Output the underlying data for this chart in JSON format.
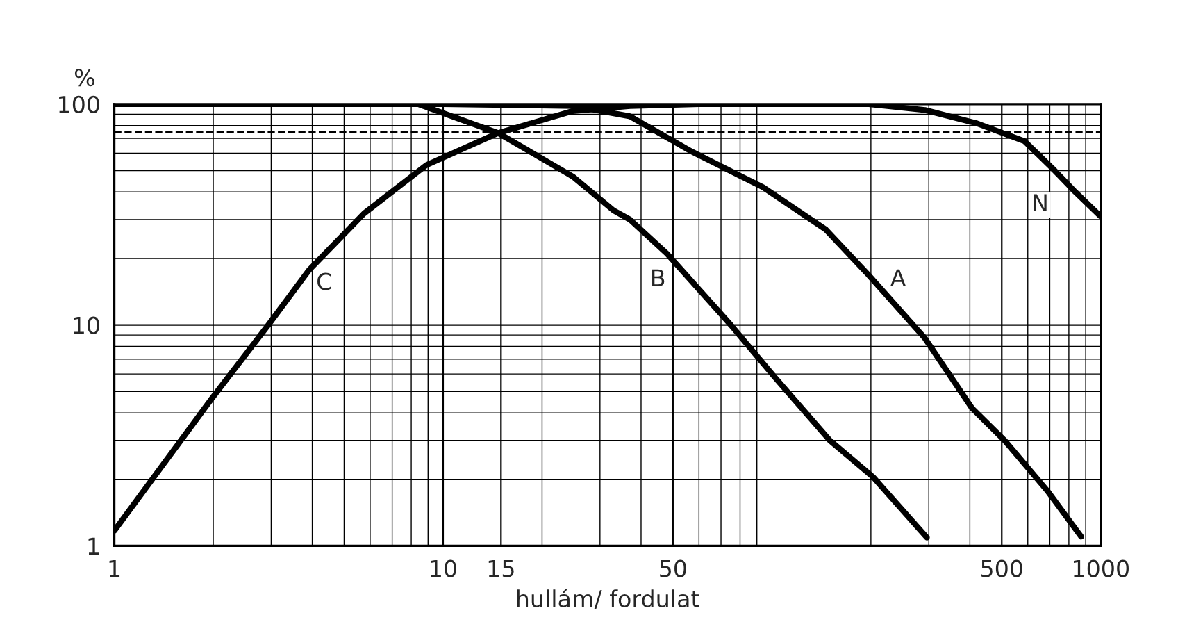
{
  "chart_data": {
    "type": "line",
    "xlabel": "hullám/ fordulat",
    "ylabel": "%",
    "log": "xy",
    "xlim": [
      1,
      1000
    ],
    "ylim": [
      1,
      100
    ],
    "xticks": [
      1,
      10,
      15,
      50,
      500,
      1000
    ],
    "yticks": [
      1,
      10,
      100
    ],
    "grid": true,
    "marker": "none",
    "line_style": "solid",
    "series": [
      {
        "color": "#000000",
        "x": [
          1,
          1.97,
          2.94,
          3.92,
          5.75,
          8.9,
          14.7,
          24.8,
          37,
          60
        ],
        "values": [
          1.17,
          4.6,
          10,
          17.8,
          32,
          53,
          74,
          93,
          98,
          100
        ]
      },
      {
        "color": "#000000",
        "x": [
          1,
          8.4,
          14.7,
          24.8,
          33,
          37,
          48,
          75,
          101,
          150,
          203,
          296
        ],
        "values": [
          100,
          100,
          74,
          47,
          33,
          30,
          21,
          10,
          5.9,
          3.0,
          2.05,
          1.09
        ]
      },
      {
        "color": "#000000",
        "x": [
          1,
          10,
          25,
          37,
          57,
          94,
          146,
          197,
          292,
          406,
          510,
          687,
          872
        ],
        "values": [
          100,
          100,
          98,
          88,
          61,
          42,
          27,
          16.8,
          8.7,
          4.2,
          3.0,
          1.78,
          1.1
        ]
      },
      {
        "color": "#000000",
        "x": [
          1,
          197,
          292,
          418,
          586,
          715,
          837,
          1000
        ],
        "values": [
          100,
          100,
          94,
          82,
          68,
          51,
          40,
          31
        ]
      }
    ],
    "ref_lines": [
      {
        "axis": "y",
        "value": 75,
        "line_style": "dashed",
        "color": "#000000"
      }
    ],
    "annotations": [
      {
        "text": "C",
        "x": 4.35,
        "y": 15.4
      },
      {
        "text": "B",
        "x": 45,
        "y": 16
      },
      {
        "text": "A",
        "x": 242,
        "y": 16
      },
      {
        "text": "N",
        "x": 654,
        "y": 35
      }
    ]
  }
}
